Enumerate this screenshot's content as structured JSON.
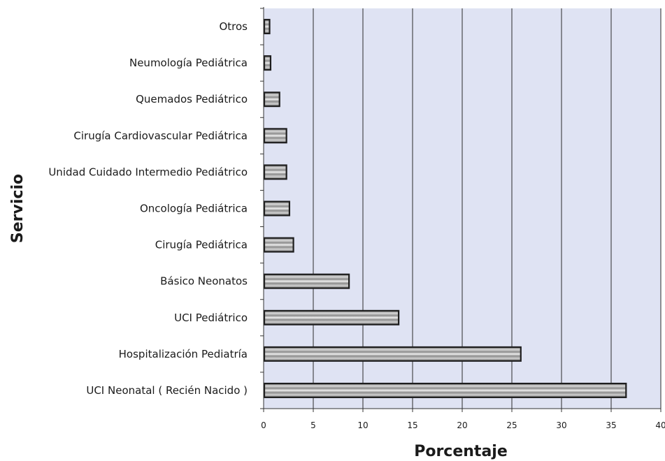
{
  "chart_data": {
    "type": "bar",
    "orientation": "horizontal",
    "categories": [
      "Otros",
      "Neumología Pediátrica",
      "Quemados Pediátrico",
      "Cirugía Cardiovascular Pediátrica",
      "Unidad Cuidado Intermedio Pediátrico",
      "Oncología Pediátrica",
      "Cirugía Pediátrica",
      "Básico Neonatos",
      "UCI Pediátrico",
      "Hospitalización Pediatría",
      "UCI Neonatal ( Recién Nacido )"
    ],
    "values": [
      0.6,
      0.7,
      1.6,
      2.3,
      2.3,
      2.6,
      3.0,
      8.6,
      13.6,
      25.9,
      36.5
    ],
    "xlabel": "Porcentaje",
    "ylabel": "Servicio",
    "xlim": [
      0,
      40
    ],
    "xticks": [
      "0",
      "5",
      "10",
      "15",
      "20",
      "25",
      "30",
      "35",
      "40"
    ],
    "grid": "vertical",
    "legend": "none",
    "colors": {
      "plot_background": "#DFE3F3",
      "bar_fill": "#A6A6A6",
      "bar_stroke": "#1E1E1E",
      "gridline": "#2B2B2B"
    }
  }
}
